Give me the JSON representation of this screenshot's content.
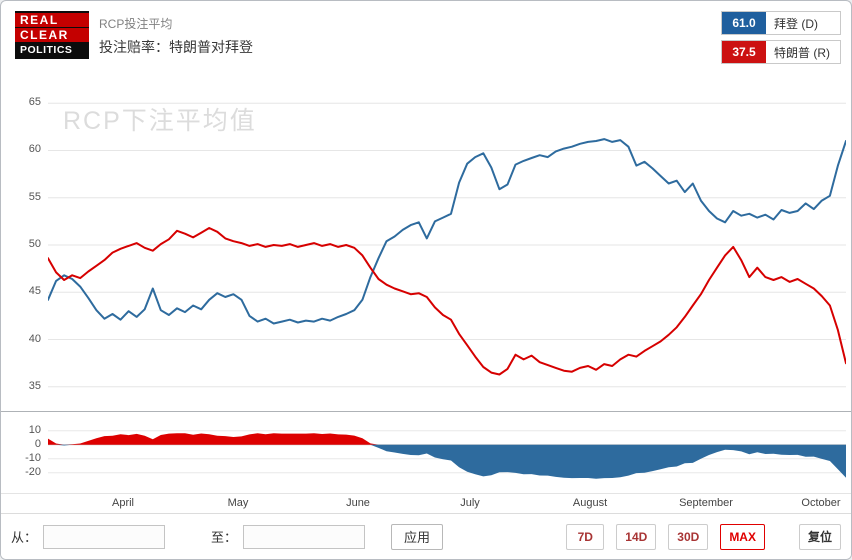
{
  "header": {
    "logo": {
      "line1": "REAL",
      "line2": "CLEAR",
      "line3": "POLITICS"
    },
    "subtitle": "RCP投注平均",
    "title": "投注赔率：特朗普对拜登",
    "legend": [
      {
        "value": "61.0",
        "label": "拜登 (D)",
        "color": "#1f5f9e"
      },
      {
        "value": "37.5",
        "label": "特朗普 (R)",
        "color": "#cc1111"
      }
    ]
  },
  "chart_data": {
    "type": "line",
    "watermark": "RCP下注平均值",
    "main_yticks": [
      65,
      60,
      55,
      50,
      45,
      40,
      35
    ],
    "main_ylim": [
      33.5,
      66.5
    ],
    "months": [
      {
        "label": "April",
        "t": 9.3
      },
      {
        "label": "May",
        "t": 23.6
      },
      {
        "label": "June",
        "t": 38.4
      },
      {
        "label": "July",
        "t": 52.4
      },
      {
        "label": "August",
        "t": 67.2
      },
      {
        "label": "September",
        "t": 81.6
      },
      {
        "label": "October",
        "t": 95.9
      }
    ],
    "series": [
      {
        "name": "拜登 (D)",
        "color": "#2e6b9e",
        "final_value": 61.0,
        "values": [
          44.2,
          46.2,
          46.8,
          46.4,
          45.6,
          44.4,
          43.1,
          42.2,
          42.7,
          42.1,
          43.0,
          42.4,
          43.2,
          45.4,
          43.1,
          42.6,
          43.3,
          42.9,
          43.6,
          43.2,
          44.2,
          44.9,
          44.5,
          44.8,
          44.2,
          42.5,
          41.9,
          42.2,
          41.7,
          41.9,
          42.1,
          41.8,
          42.0,
          41.9,
          42.2,
          42.0,
          42.4,
          42.7,
          43.1,
          44.2,
          46.6,
          48.6,
          50.4,
          50.9,
          51.6,
          52.1,
          52.4,
          50.7,
          52.5,
          52.9,
          53.3,
          56.6,
          58.6,
          59.3,
          59.7,
          58.2,
          55.9,
          56.4,
          58.5,
          58.9,
          59.2,
          59.5,
          59.3,
          59.9,
          60.2,
          60.4,
          60.7,
          60.9,
          61.0,
          61.2,
          60.9,
          61.1,
          60.4,
          58.4,
          58.8,
          58.1,
          57.3,
          56.5,
          56.8,
          55.6,
          56.5,
          54.7,
          53.6,
          52.8,
          52.4,
          53.6,
          53.1,
          53.3,
          52.9,
          53.2,
          52.7,
          53.7,
          53.4,
          53.6,
          54.4,
          53.8,
          54.7,
          55.2,
          58.4,
          61.0
        ]
      },
      {
        "name": "特朗普 (R)",
        "color": "#d60000",
        "final_value": 37.5,
        "values": [
          48.6,
          47.1,
          46.3,
          46.8,
          46.5,
          47.2,
          47.8,
          48.4,
          49.2,
          49.6,
          49.9,
          50.2,
          49.7,
          49.4,
          50.1,
          50.6,
          51.5,
          51.2,
          50.8,
          51.3,
          51.8,
          51.4,
          50.7,
          50.4,
          50.2,
          49.9,
          50.1,
          49.8,
          50.0,
          49.9,
          50.1,
          49.8,
          50.0,
          50.2,
          49.9,
          50.1,
          49.8,
          50.0,
          49.7,
          48.9,
          47.6,
          46.4,
          45.8,
          45.4,
          45.1,
          44.8,
          44.9,
          44.5,
          43.4,
          42.6,
          42.1,
          40.6,
          39.4,
          38.2,
          37.1,
          36.5,
          36.3,
          36.9,
          38.4,
          37.9,
          38.3,
          37.6,
          37.3,
          37.0,
          36.7,
          36.6,
          37.0,
          37.2,
          36.8,
          37.4,
          37.2,
          37.9,
          38.4,
          38.2,
          38.8,
          39.3,
          39.8,
          40.5,
          41.3,
          42.4,
          43.6,
          44.8,
          46.3,
          47.6,
          48.9,
          49.8,
          48.4,
          46.6,
          47.6,
          46.6,
          46.3,
          46.6,
          46.1,
          46.4,
          45.9,
          45.4,
          44.6,
          43.6,
          41.0,
          37.5
        ]
      }
    ],
    "spread": {
      "note": "特朗普 − 拜登 (computed: series1 - series0)",
      "pos_color": "#dd0000",
      "neg_color": "#2e6b9e",
      "yticks": [
        10,
        0,
        -10,
        -20
      ]
    }
  },
  "controls": {
    "from_label": "从：",
    "to_label": "至：",
    "from_value": "",
    "to_value": "",
    "apply_label": "应用",
    "range_buttons": [
      {
        "label": "7D",
        "active": false
      },
      {
        "label": "14D",
        "active": false
      },
      {
        "label": "30D",
        "active": false
      },
      {
        "label": "MAX",
        "active": true
      },
      {
        "label": "复位",
        "active": false
      }
    ]
  }
}
